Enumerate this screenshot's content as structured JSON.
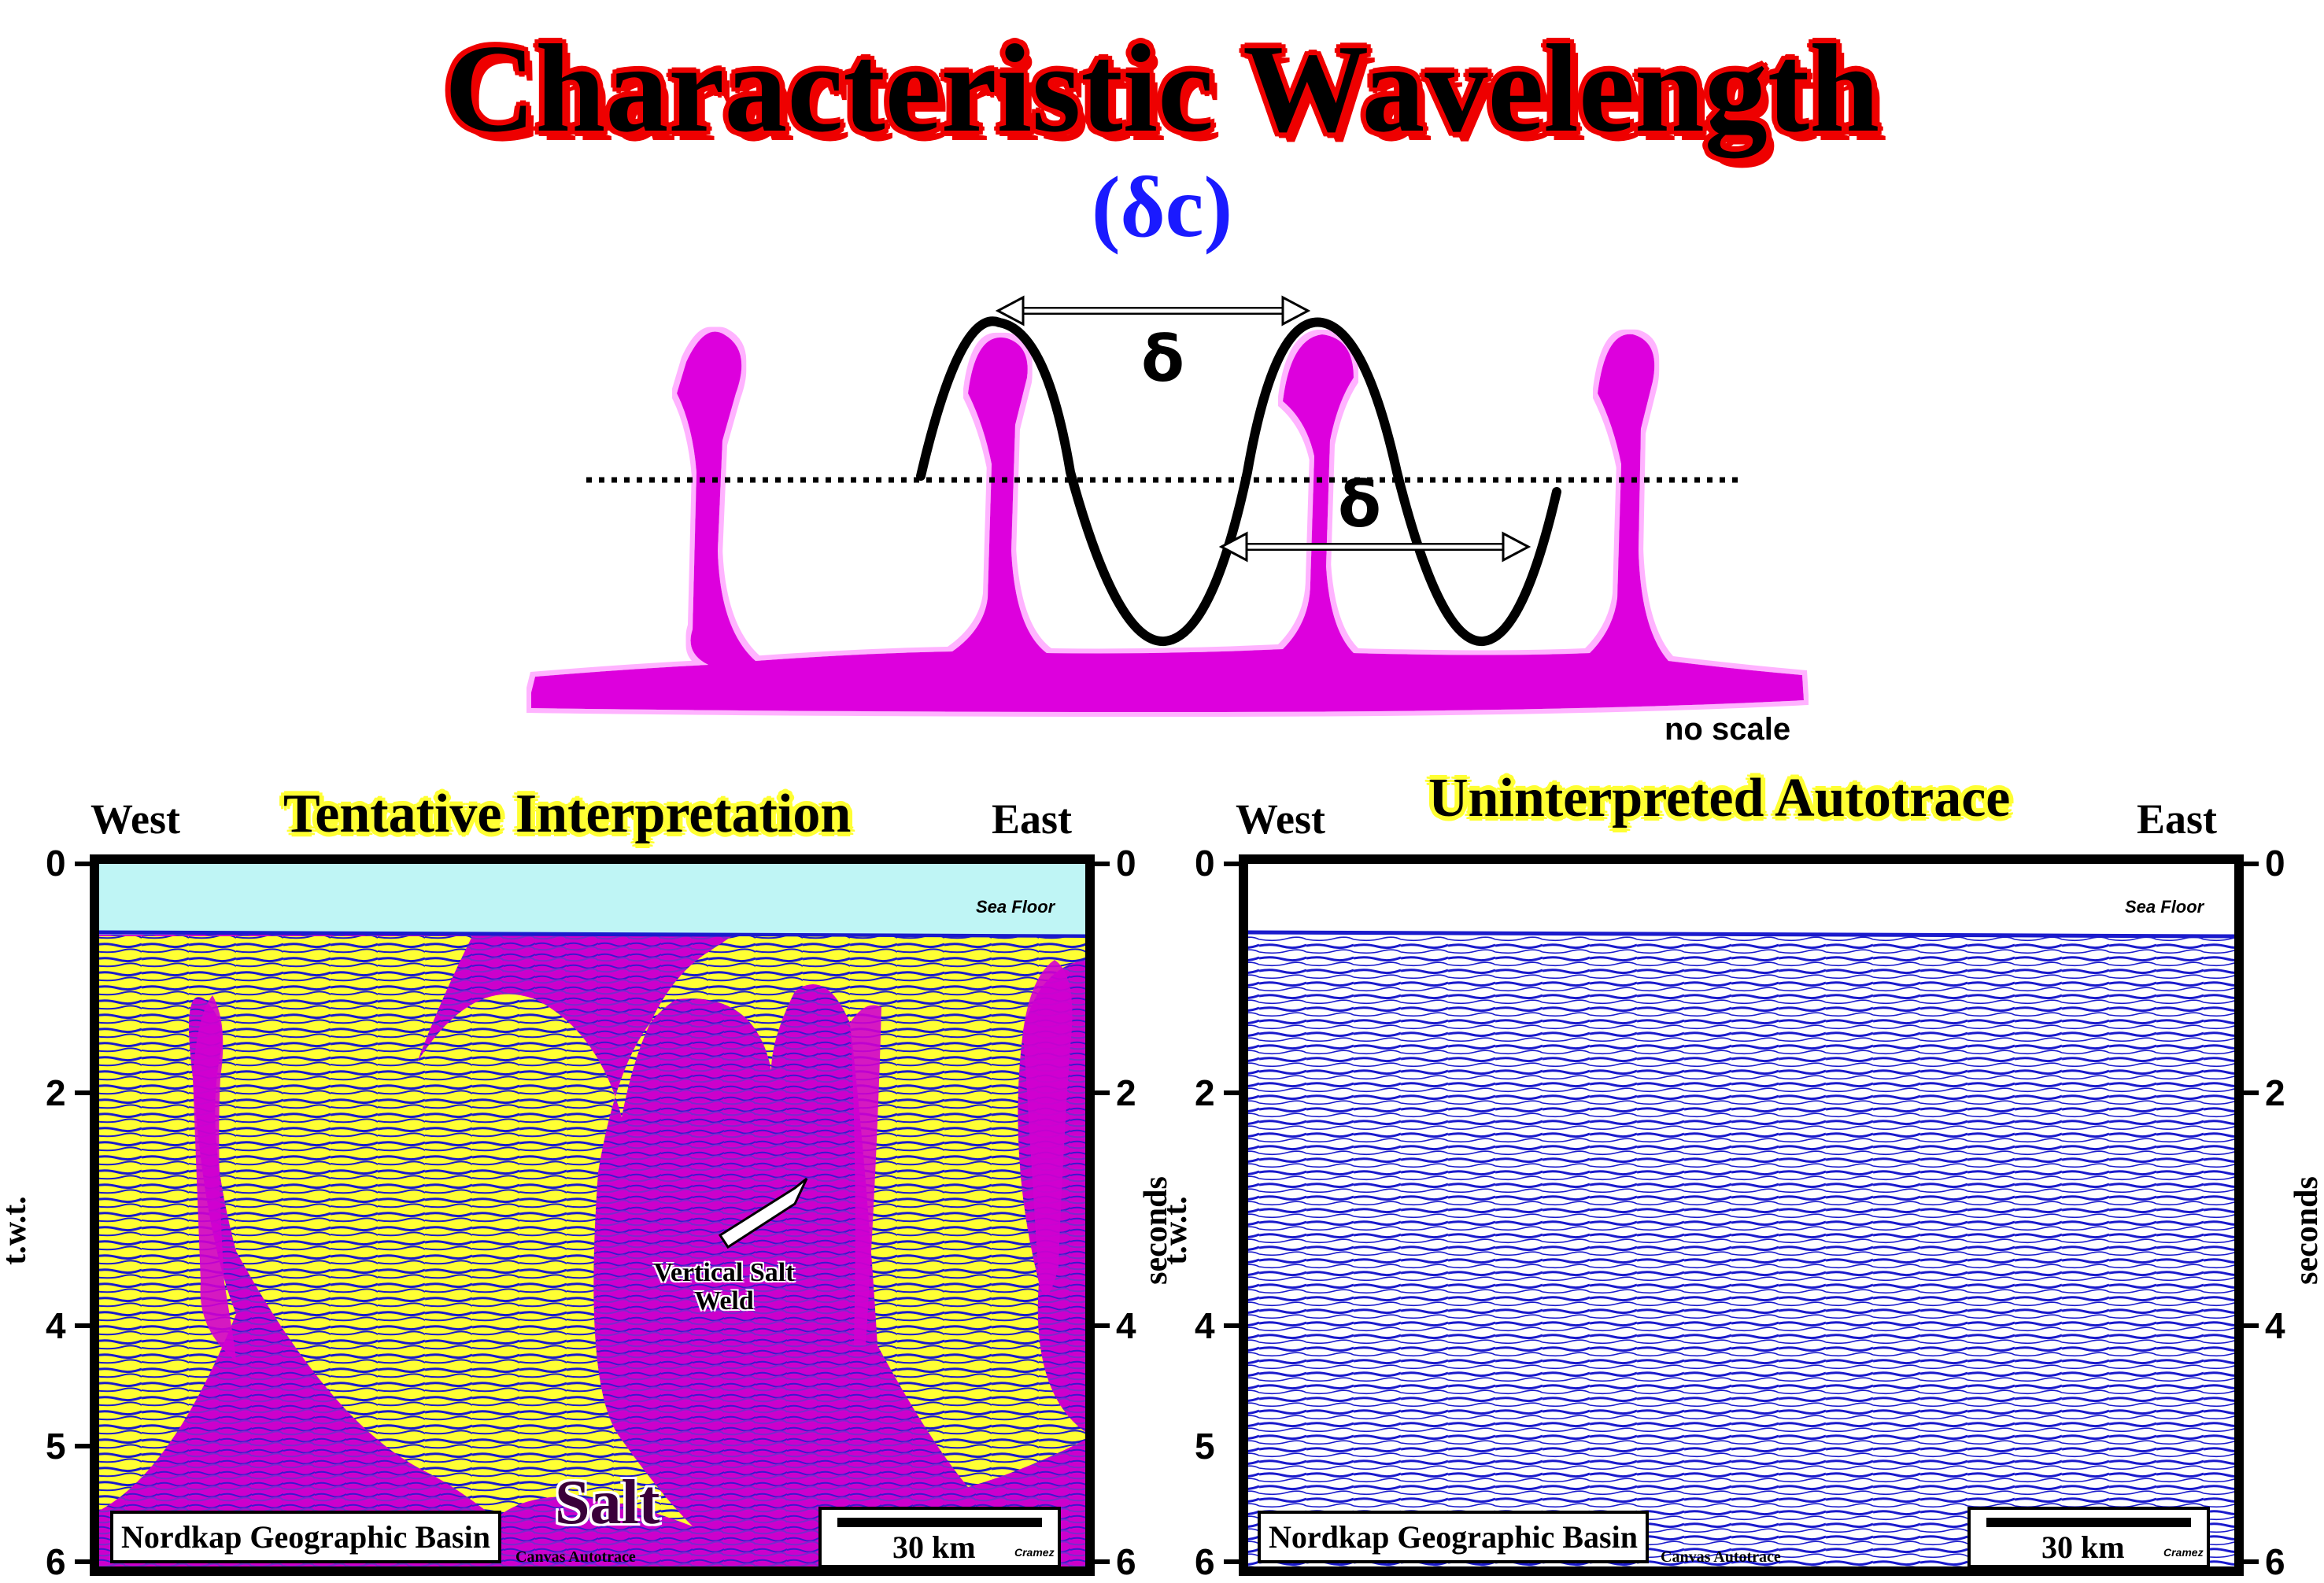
{
  "title": "Characteristic Wavelength",
  "subtitle": "(δc)",
  "diagram": {
    "delta_label_1": "δ",
    "delta_label_2": "δ",
    "no_scale": "no scale"
  },
  "left_panel": {
    "title": "Tentative Interpretation",
    "west": "West",
    "east": "East",
    "left_ticks": [
      "0",
      "2",
      "4",
      "5",
      "6"
    ],
    "right_ticks": [
      "0",
      "2",
      "4",
      "6"
    ],
    "left_axis_label": "t.w.t.",
    "right_axis_label": "seconds",
    "sea_floor": "Sea Floor",
    "salt_label": "Salt",
    "weld_label_1": "Vertical Salt",
    "weld_label_2": "Weld",
    "basin_label": "Nordkap Geographic Basin",
    "scale_label": "30 km",
    "credit": "Cramez",
    "software": "Canvas Autotrace"
  },
  "right_panel": {
    "title": "Uninterpreted Autotrace",
    "west": "West",
    "east": "East",
    "left_ticks": [
      "0",
      "2",
      "4",
      "5",
      "6"
    ],
    "right_ticks": [
      "0",
      "2",
      "4",
      "6"
    ],
    "left_axis_label": "t.w.t.",
    "right_axis_label": "seconds",
    "sea_floor": "Sea Floor",
    "basin_label": "Nordkap Geographic Basin",
    "scale_label": "30 km",
    "credit": "Cramez",
    "software": "Canvas Autotrace"
  },
  "colors": {
    "title_outline": "#e00000",
    "subtitle": "#1a1aff",
    "salt": "#dd00dd",
    "sediment": "#ffff33",
    "seismic": "#1a1acc",
    "sea": "#bff5f5"
  }
}
